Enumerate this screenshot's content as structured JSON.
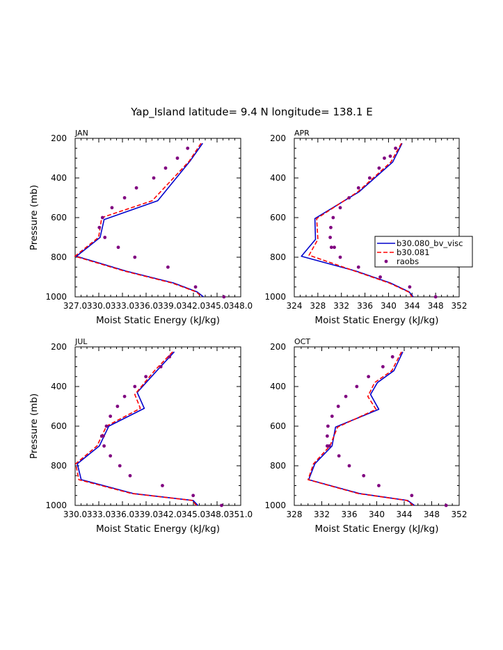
{
  "title": "Yap_Island  latitude= 9.4 N longitude= 138.1 E",
  "colors": {
    "b30.080_bv_visc": "#0000cc",
    "b30.081": "#ff0000",
    "raobs": "#800080"
  },
  "legend": {
    "placement": "right of APR panel, lower half",
    "entries": [
      "b30.080_bv_visc",
      "b30.081",
      "raobs"
    ]
  },
  "chart_data": [
    {
      "type": "line",
      "panel": "JAN",
      "xlabel": "Moist Static Energy (kJ/kg)",
      "ylabel": "Pressure (mb)",
      "xlim": [
        327.03,
        348.03
      ],
      "ylim": [
        1000,
        200
      ],
      "y_reversed": true,
      "xticks": [
        327.03,
        330.03,
        333.03,
        336.03,
        339.03,
        342.03,
        345.03,
        348.03
      ],
      "xtick_labels": [
        "327.0",
        "330.0",
        "333.0",
        "336.0",
        "339.0",
        "342.0",
        "345.0",
        "348.0"
      ],
      "yticks": [
        200,
        400,
        600,
        800,
        1000
      ],
      "ytick_labels": [
        "200",
        "400",
        "600",
        "800",
        "1000"
      ],
      "series": [
        {
          "name": "b30.080_bv_visc",
          "style": "solid",
          "x": [
            343.2,
            341.6,
            337.5,
            330.7,
            330.2,
            327.2,
            333.5,
            339.5,
            342.5,
            343.3
          ],
          "y": [
            225,
            315,
            515,
            610,
            700,
            795,
            870,
            930,
            975,
            1000
          ]
        },
        {
          "name": "b30.081",
          "style": "dashed",
          "x": [
            343.0,
            341.5,
            336.8,
            330.4,
            330.0,
            327.0,
            333.3,
            339.3,
            342.4,
            343.1
          ],
          "y": [
            225,
            315,
            515,
            600,
            700,
            795,
            870,
            930,
            975,
            1000
          ]
        },
        {
          "name": "raobs",
          "style": "markers",
          "x": [
            341.3,
            340.0,
            338.5,
            337.0,
            334.8,
            333.3,
            331.7,
            330.5,
            330.1,
            330.8,
            332.5,
            334.6,
            338.8,
            342.3,
            345.9
          ],
          "y": [
            250,
            300,
            350,
            400,
            450,
            500,
            550,
            600,
            650,
            700,
            750,
            800,
            850,
            950,
            1000
          ]
        }
      ]
    },
    {
      "type": "line",
      "panel": "APR",
      "xlabel": "Moist Static Energy (kJ/kg)",
      "ylabel": "",
      "xlim": [
        324,
        352
      ],
      "ylim": [
        1000,
        200
      ],
      "y_reversed": true,
      "xticks": [
        324,
        328,
        332,
        336,
        340,
        344,
        348,
        352
      ],
      "xtick_labels": [
        "324",
        "328",
        "332",
        "336",
        "340",
        "344",
        "348",
        "352"
      ],
      "yticks": [
        200,
        400,
        600,
        800,
        1000
      ],
      "ytick_labels": [
        "200",
        "400",
        "600",
        "800",
        "1000"
      ],
      "series": [
        {
          "name": "b30.080_bv_visc",
          "style": "solid",
          "x": [
            342.3,
            340.7,
            335.0,
            327.5,
            327.6,
            325.2,
            334.5,
            340.3,
            343.5,
            344.2
          ],
          "y": [
            225,
            320,
            470,
            605,
            710,
            795,
            870,
            930,
            975,
            1000
          ]
        },
        {
          "name": "b30.081",
          "style": "dashed",
          "x": [
            342.2,
            340.4,
            334.8,
            327.8,
            328.0,
            326.5,
            334.3,
            340.1,
            343.4,
            344.0
          ],
          "y": [
            225,
            320,
            470,
            605,
            710,
            790,
            870,
            930,
            975,
            1000
          ]
        },
        {
          "name": "raobs",
          "style": "markers",
          "x": [
            341.2,
            340.3,
            339.3,
            338.4,
            336.8,
            334.9,
            333.3,
            331.8,
            330.6,
            330.2,
            330.1,
            330.3,
            330.8,
            331.8,
            334.9,
            338.6,
            343.6,
            348.0
          ],
          "y": [
            250,
            290,
            300,
            350,
            400,
            450,
            500,
            550,
            600,
            650,
            700,
            750,
            750,
            800,
            850,
            900,
            950,
            1000
          ]
        }
      ]
    },
    {
      "type": "line",
      "panel": "JUL",
      "xlabel": "Moist Static Energy (kJ/kg)",
      "ylabel": "Pressure (mb)",
      "xlim": [
        330.03,
        351.03
      ],
      "ylim": [
        1000,
        200
      ],
      "y_reversed": true,
      "xticks": [
        330.03,
        333.03,
        336.03,
        339.03,
        342.03,
        345.03,
        348.03,
        351.03
      ],
      "xtick_labels": [
        "330.0",
        "333.0",
        "336.0",
        "339.0",
        "342.0",
        "345.0",
        "348.0",
        "351.0"
      ],
      "yticks": [
        200,
        400,
        600,
        800,
        1000
      ],
      "ytick_labels": [
        "200",
        "400",
        "600",
        "800",
        "1000"
      ],
      "series": [
        {
          "name": "b30.080_bv_visc",
          "style": "solid",
          "x": [
            342.6,
            340.4,
            337.9,
            338.8,
            334.3,
            333.1,
            330.3,
            330.8,
            337.4,
            345.0,
            345.6
          ],
          "y": [
            225,
            320,
            430,
            510,
            600,
            700,
            790,
            870,
            940,
            975,
            1000
          ]
        },
        {
          "name": "b30.081",
          "style": "dashed",
          "x": [
            342.4,
            340.1,
            337.6,
            338.3,
            334.0,
            332.8,
            330.1,
            330.5,
            337.2,
            344.9,
            345.4
          ],
          "y": [
            225,
            320,
            440,
            510,
            600,
            700,
            790,
            870,
            940,
            975,
            1000
          ]
        },
        {
          "name": "raobs",
          "style": "markers",
          "x": [
            342.0,
            340.9,
            339.0,
            337.6,
            336.3,
            335.4,
            334.5,
            334.0,
            333.6,
            333.4,
            333.7,
            334.5,
            335.7,
            337.0,
            341.1,
            345.0,
            348.6
          ],
          "y": [
            250,
            300,
            350,
            400,
            450,
            500,
            550,
            600,
            650,
            650,
            700,
            750,
            800,
            850,
            900,
            950,
            1000
          ]
        }
      ]
    },
    {
      "type": "line",
      "panel": "OCT",
      "xlabel": "Moist Static Energy (kJ/kg)",
      "ylabel": "",
      "xlim": [
        328,
        352
      ],
      "ylim": [
        1000,
        200
      ],
      "y_reversed": true,
      "xticks": [
        328,
        332,
        336,
        340,
        344,
        348,
        352
      ],
      "xtick_labels": [
        "328",
        "332",
        "336",
        "340",
        "344",
        "348",
        "352"
      ],
      "yticks": [
        200,
        400,
        600,
        800,
        1000
      ],
      "ytick_labels": [
        "200",
        "400",
        "600",
        "800",
        "1000"
      ],
      "series": [
        {
          "name": "b30.080_bv_visc",
          "style": "solid",
          "x": [
            343.8,
            342.5,
            340.1,
            339.1,
            340.3,
            334.0,
            333.5,
            331.0,
            330.1,
            337.5,
            344.5,
            345.5
          ],
          "y": [
            225,
            320,
            380,
            440,
            515,
            605,
            700,
            790,
            870,
            940,
            975,
            1000
          ]
        },
        {
          "name": "b30.081",
          "style": "dashed",
          "x": [
            343.6,
            342.2,
            339.7,
            338.7,
            339.9,
            334.3,
            333.2,
            330.8,
            330.0,
            337.3,
            344.4,
            345.3
          ],
          "y": [
            225,
            320,
            380,
            450,
            515,
            605,
            700,
            790,
            870,
            940,
            975,
            1000
          ]
        },
        {
          "name": "raobs",
          "style": "markers",
          "x": [
            342.3,
            340.9,
            338.8,
            337.1,
            335.5,
            334.4,
            333.5,
            332.9,
            332.8,
            332.8,
            333.1,
            334.5,
            336.0,
            338.1,
            340.3,
            345.1,
            350.1
          ],
          "y": [
            250,
            300,
            350,
            400,
            450,
            500,
            550,
            600,
            650,
            700,
            700,
            750,
            800,
            850,
            900,
            950,
            1000
          ]
        }
      ]
    }
  ]
}
